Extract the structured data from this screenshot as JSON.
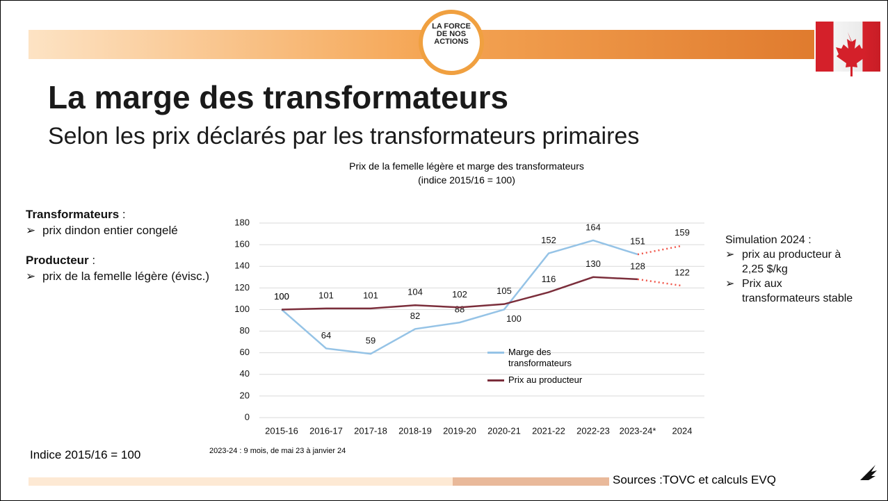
{
  "logo": [
    "LA FORCE",
    "DE NOS",
    "ACTIONS"
  ],
  "title": "La marge des transformateurs",
  "subtitle": "Selon les prix déclarés par les transformateurs primaires",
  "left_notes": [
    {
      "heading": "Transformateurs",
      "sep": ":",
      "bullet": "prix dindon entier congelé"
    },
    {
      "heading": "Producteur",
      "sep": ":",
      "bullet": "prix de la femelle légère (évisc.)"
    }
  ],
  "right_notes": {
    "heading": "Simulation 2024 :",
    "bullets": [
      "prix au producteur à 2,25 $/kg",
      "Prix aux transformateurs stable"
    ]
  },
  "index_note": "Indice 2015/16 = 100",
  "footnote": "2023-24 : 9 mois, de mai 23 à janvier 24",
  "sources": "Sources :TOVC et calculs EVQ",
  "chart_data": {
    "type": "line",
    "title": "Prix de la femelle légère et marge des transformateurs (indice 2015/16 = 100)",
    "categories": [
      "2015-16",
      "2016-17",
      "2017-18",
      "2018-19",
      "2019-20",
      "2020-21",
      "2021-22",
      "2022-23",
      "2023-24*",
      "2024"
    ],
    "series": [
      {
        "name": "Marge des transformateurs",
        "color": "#95c3e6",
        "values": [
          100,
          64,
          59,
          82,
          88,
          100,
          152,
          164,
          151,
          159
        ]
      },
      {
        "name": "Prix au producteur",
        "color": "#7b2e3b",
        "values": [
          100,
          101,
          101,
          104,
          102,
          105,
          116,
          130,
          128,
          122
        ]
      }
    ],
    "last_segment_style": "dotted",
    "last_segment_color": "#f0564a",
    "ylim": [
      0,
      180
    ],
    "yticks": [
      0,
      20,
      40,
      60,
      80,
      100,
      120,
      140,
      160,
      180
    ],
    "grid": true
  }
}
